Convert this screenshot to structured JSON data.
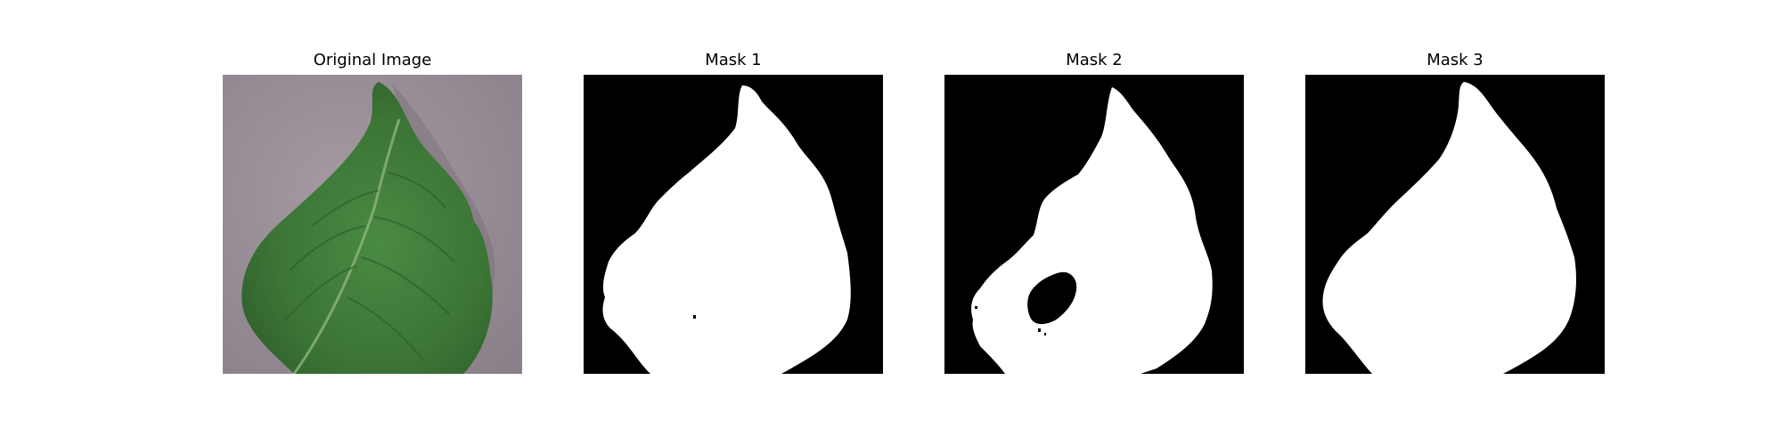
{
  "panels": [
    {
      "title": "Original Image"
    },
    {
      "title": "Mask 1"
    },
    {
      "title": "Mask 2"
    },
    {
      "title": "Mask 3"
    }
  ],
  "colors": {
    "background": "#ffffff",
    "mask_background": "#000000",
    "mask_foreground": "#ffffff",
    "leaf_green": "#3f7a38",
    "surface_gray": "#9a8f97"
  }
}
